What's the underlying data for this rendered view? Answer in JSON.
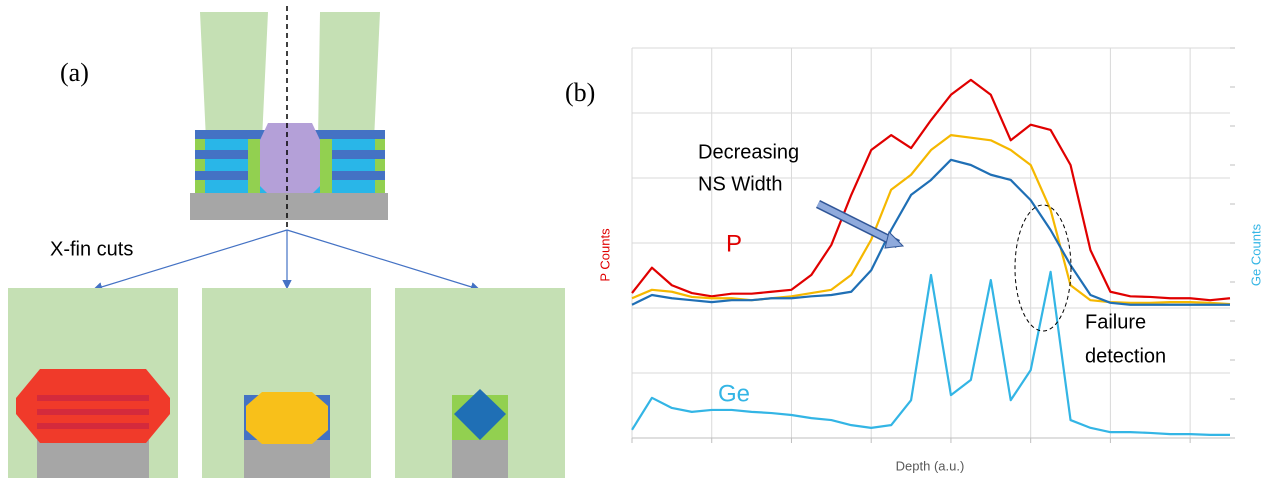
{
  "panel_a": {
    "label": "(a)",
    "cut_caption": "X-fin cuts"
  },
  "chart_data": {
    "type": "line",
    "panel_label": "(b)",
    "xlabel": "Depth (a.u.)",
    "ylabel": "P Counts",
    "y2label": "Ge Counts",
    "annotations": {
      "trend": [
        "Decreasing",
        "NS Width"
      ],
      "p_label": "P",
      "ge_label": "Ge",
      "failure": [
        "Failure",
        "detection"
      ]
    },
    "x": [
      0,
      0.25,
      0.5,
      0.75,
      1,
      1.25,
      1.5,
      1.75,
      2,
      2.25,
      2.5,
      2.75,
      3,
      3.25,
      3.5,
      3.75,
      4,
      4.25,
      4.5,
      4.75,
      5,
      5.25,
      5.5,
      5.75,
      6,
      6.25,
      6.5,
      6.75,
      7,
      7.25,
      7.5
    ],
    "xlim": [
      0,
      7.5
    ],
    "xticks": [
      0,
      1,
      2,
      3,
      4,
      5,
      6,
      7
    ],
    "ylim": [
      0,
      6
    ],
    "yticks": [
      0,
      1,
      2,
      3,
      4,
      5,
      6
    ],
    "y2lim": [
      0,
      10
    ],
    "y2ticks": [
      0,
      1,
      2,
      3,
      4,
      5,
      6,
      7,
      8,
      9,
      10
    ],
    "grid": true,
    "series": [
      {
        "color": "#e00000",
        "values": [
          2.23,
          2.62,
          2.35,
          2.23,
          2.18,
          2.22,
          2.22,
          2.25,
          2.28,
          2.51,
          2.97,
          3.74,
          4.43,
          4.66,
          4.46,
          4.89,
          5.28,
          5.51,
          5.28,
          4.58,
          4.82,
          4.74,
          4.2,
          2.89,
          2.25,
          2.18,
          2.17,
          2.15,
          2.15,
          2.12,
          2.15
        ]
      },
      {
        "color": "#f5b800",
        "values": [
          2.15,
          2.28,
          2.25,
          2.17,
          2.15,
          2.15,
          2.12,
          2.15,
          2.18,
          2.23,
          2.28,
          2.51,
          3.05,
          3.82,
          4.05,
          4.43,
          4.66,
          4.62,
          4.58,
          4.43,
          4.2,
          3.51,
          2.35,
          2.12,
          2.09,
          2.08,
          2.08,
          2.09,
          2.09,
          2.08,
          2.06
        ]
      },
      {
        "color": "#1f6fb5",
        "values": [
          2.05,
          2.2,
          2.15,
          2.12,
          2.09,
          2.12,
          2.12,
          2.15,
          2.15,
          2.18,
          2.2,
          2.25,
          2.58,
          3.2,
          3.74,
          3.97,
          4.28,
          4.2,
          4.05,
          3.97,
          3.66,
          3.2,
          2.66,
          2.2,
          2.08,
          2.05,
          2.05,
          2.05,
          2.05,
          2.05,
          2.05
        ]
      },
      {
        "color": "#33b5e5",
        "axis": "y2",
        "values": [
          0.21,
          1.03,
          0.77,
          0.67,
          0.72,
          0.72,
          0.67,
          0.64,
          0.59,
          0.51,
          0.46,
          0.33,
          0.26,
          0.33,
          0.97,
          4.18,
          1.1,
          1.49,
          4.05,
          0.97,
          1.74,
          4.26,
          0.46,
          0.26,
          0.15,
          0.15,
          0.13,
          0.1,
          0.1,
          0.08,
          0.08
        ]
      }
    ]
  }
}
